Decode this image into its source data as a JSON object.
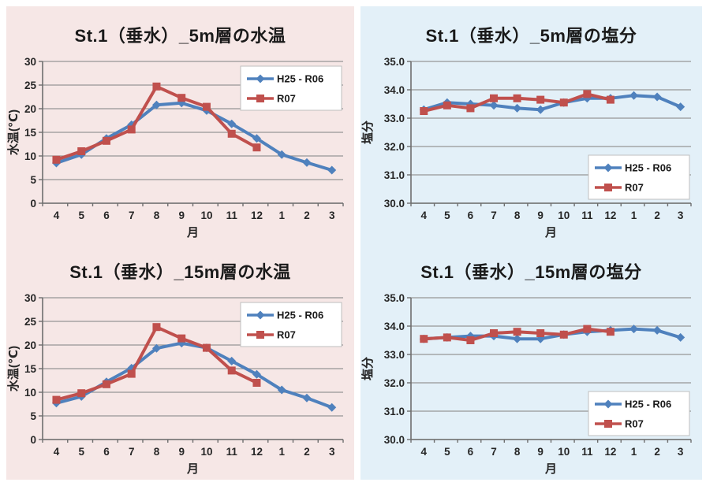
{
  "style": {
    "page_bg": "#FFFFFF",
    "panel_left_bg": "#F6E7E6",
    "panel_right_bg": "#E3F0F8",
    "grid_color": "#969696",
    "axis_color": "#6E6E6E",
    "text_color": "#262626",
    "legend_border": "#BFBFBF",
    "series_blue": "#4F81BD",
    "series_red": "#C0504D"
  },
  "chart_data": [
    {
      "type": "line",
      "title": "St.1（垂水）_5m層の水温",
      "xlabel": "月",
      "ylabel": "水温(℃)",
      "categories": [
        "4",
        "5",
        "6",
        "7",
        "8",
        "9",
        "10",
        "11",
        "12",
        "1",
        "2",
        "3"
      ],
      "ylim": [
        0,
        30
      ],
      "y_step": 5,
      "y_decimals": 0,
      "grid": true,
      "legend_position": "top-right",
      "series": [
        {
          "name": "H25 - R06",
          "color": "#4F81BD",
          "marker": "diamond",
          "values": [
            8.5,
            10.3,
            13.7,
            16.6,
            20.8,
            21.2,
            19.6,
            16.8,
            13.7,
            10.3,
            8.6,
            7.0
          ]
        },
        {
          "name": "R07",
          "color": "#C0504D",
          "marker": "square",
          "values": [
            9.2,
            11.0,
            13.2,
            15.6,
            24.7,
            22.3,
            20.4,
            14.7,
            11.8,
            null,
            null,
            null
          ]
        }
      ]
    },
    {
      "type": "line",
      "title": "St.1（垂水）_5m層の塩分",
      "xlabel": "月",
      "ylabel": "塩分",
      "categories": [
        "4",
        "5",
        "6",
        "7",
        "8",
        "9",
        "10",
        "11",
        "12",
        "1",
        "2",
        "3"
      ],
      "ylim": [
        30.0,
        35.0
      ],
      "y_step": 1.0,
      "y_decimals": 1,
      "grid": true,
      "legend_position": "bottom-right",
      "series": [
        {
          "name": "H25 - R06",
          "color": "#4F81BD",
          "marker": "diamond",
          "values": [
            33.3,
            33.55,
            33.5,
            33.45,
            33.35,
            33.3,
            33.55,
            33.7,
            33.7,
            33.8,
            33.75,
            33.4
          ]
        },
        {
          "name": "R07",
          "color": "#C0504D",
          "marker": "square",
          "values": [
            33.25,
            33.45,
            33.35,
            33.7,
            33.7,
            33.65,
            33.55,
            33.85,
            33.65,
            null,
            null,
            null
          ]
        }
      ]
    },
    {
      "type": "line",
      "title": "St.1（垂水）_15m層の水温",
      "xlabel": "月",
      "ylabel": "水温(℃)",
      "categories": [
        "4",
        "5",
        "6",
        "7",
        "8",
        "9",
        "10",
        "11",
        "12",
        "1",
        "2",
        "3"
      ],
      "ylim": [
        0,
        30
      ],
      "y_step": 5,
      "y_decimals": 0,
      "grid": true,
      "legend_position": "top-right",
      "series": [
        {
          "name": "H25 - R06",
          "color": "#4F81BD",
          "marker": "diamond",
          "values": [
            7.7,
            9.1,
            12.2,
            15.1,
            19.3,
            20.4,
            19.4,
            16.6,
            13.8,
            10.5,
            8.8,
            6.8
          ]
        },
        {
          "name": "R07",
          "color": "#C0504D",
          "marker": "square",
          "values": [
            8.4,
            9.8,
            11.7,
            13.9,
            23.8,
            21.4,
            19.4,
            14.6,
            12.0,
            null,
            null,
            null
          ]
        }
      ]
    },
    {
      "type": "line",
      "title": "St.1（垂水）_15m層の塩分",
      "xlabel": "月",
      "ylabel": "塩分",
      "categories": [
        "4",
        "5",
        "6",
        "7",
        "8",
        "9",
        "10",
        "11",
        "12",
        "1",
        "2",
        "3"
      ],
      "ylim": [
        30.0,
        35.0
      ],
      "y_step": 1.0,
      "y_decimals": 1,
      "grid": true,
      "legend_position": "bottom-right",
      "series": [
        {
          "name": "H25 - R06",
          "color": "#4F81BD",
          "marker": "diamond",
          "values": [
            33.55,
            33.6,
            33.65,
            33.65,
            33.55,
            33.55,
            33.7,
            33.8,
            33.85,
            33.9,
            33.85,
            33.6
          ]
        },
        {
          "name": "R07",
          "color": "#C0504D",
          "marker": "square",
          "values": [
            33.55,
            33.6,
            33.5,
            33.75,
            33.8,
            33.75,
            33.7,
            33.9,
            33.8,
            null,
            null,
            null
          ]
        }
      ]
    }
  ]
}
